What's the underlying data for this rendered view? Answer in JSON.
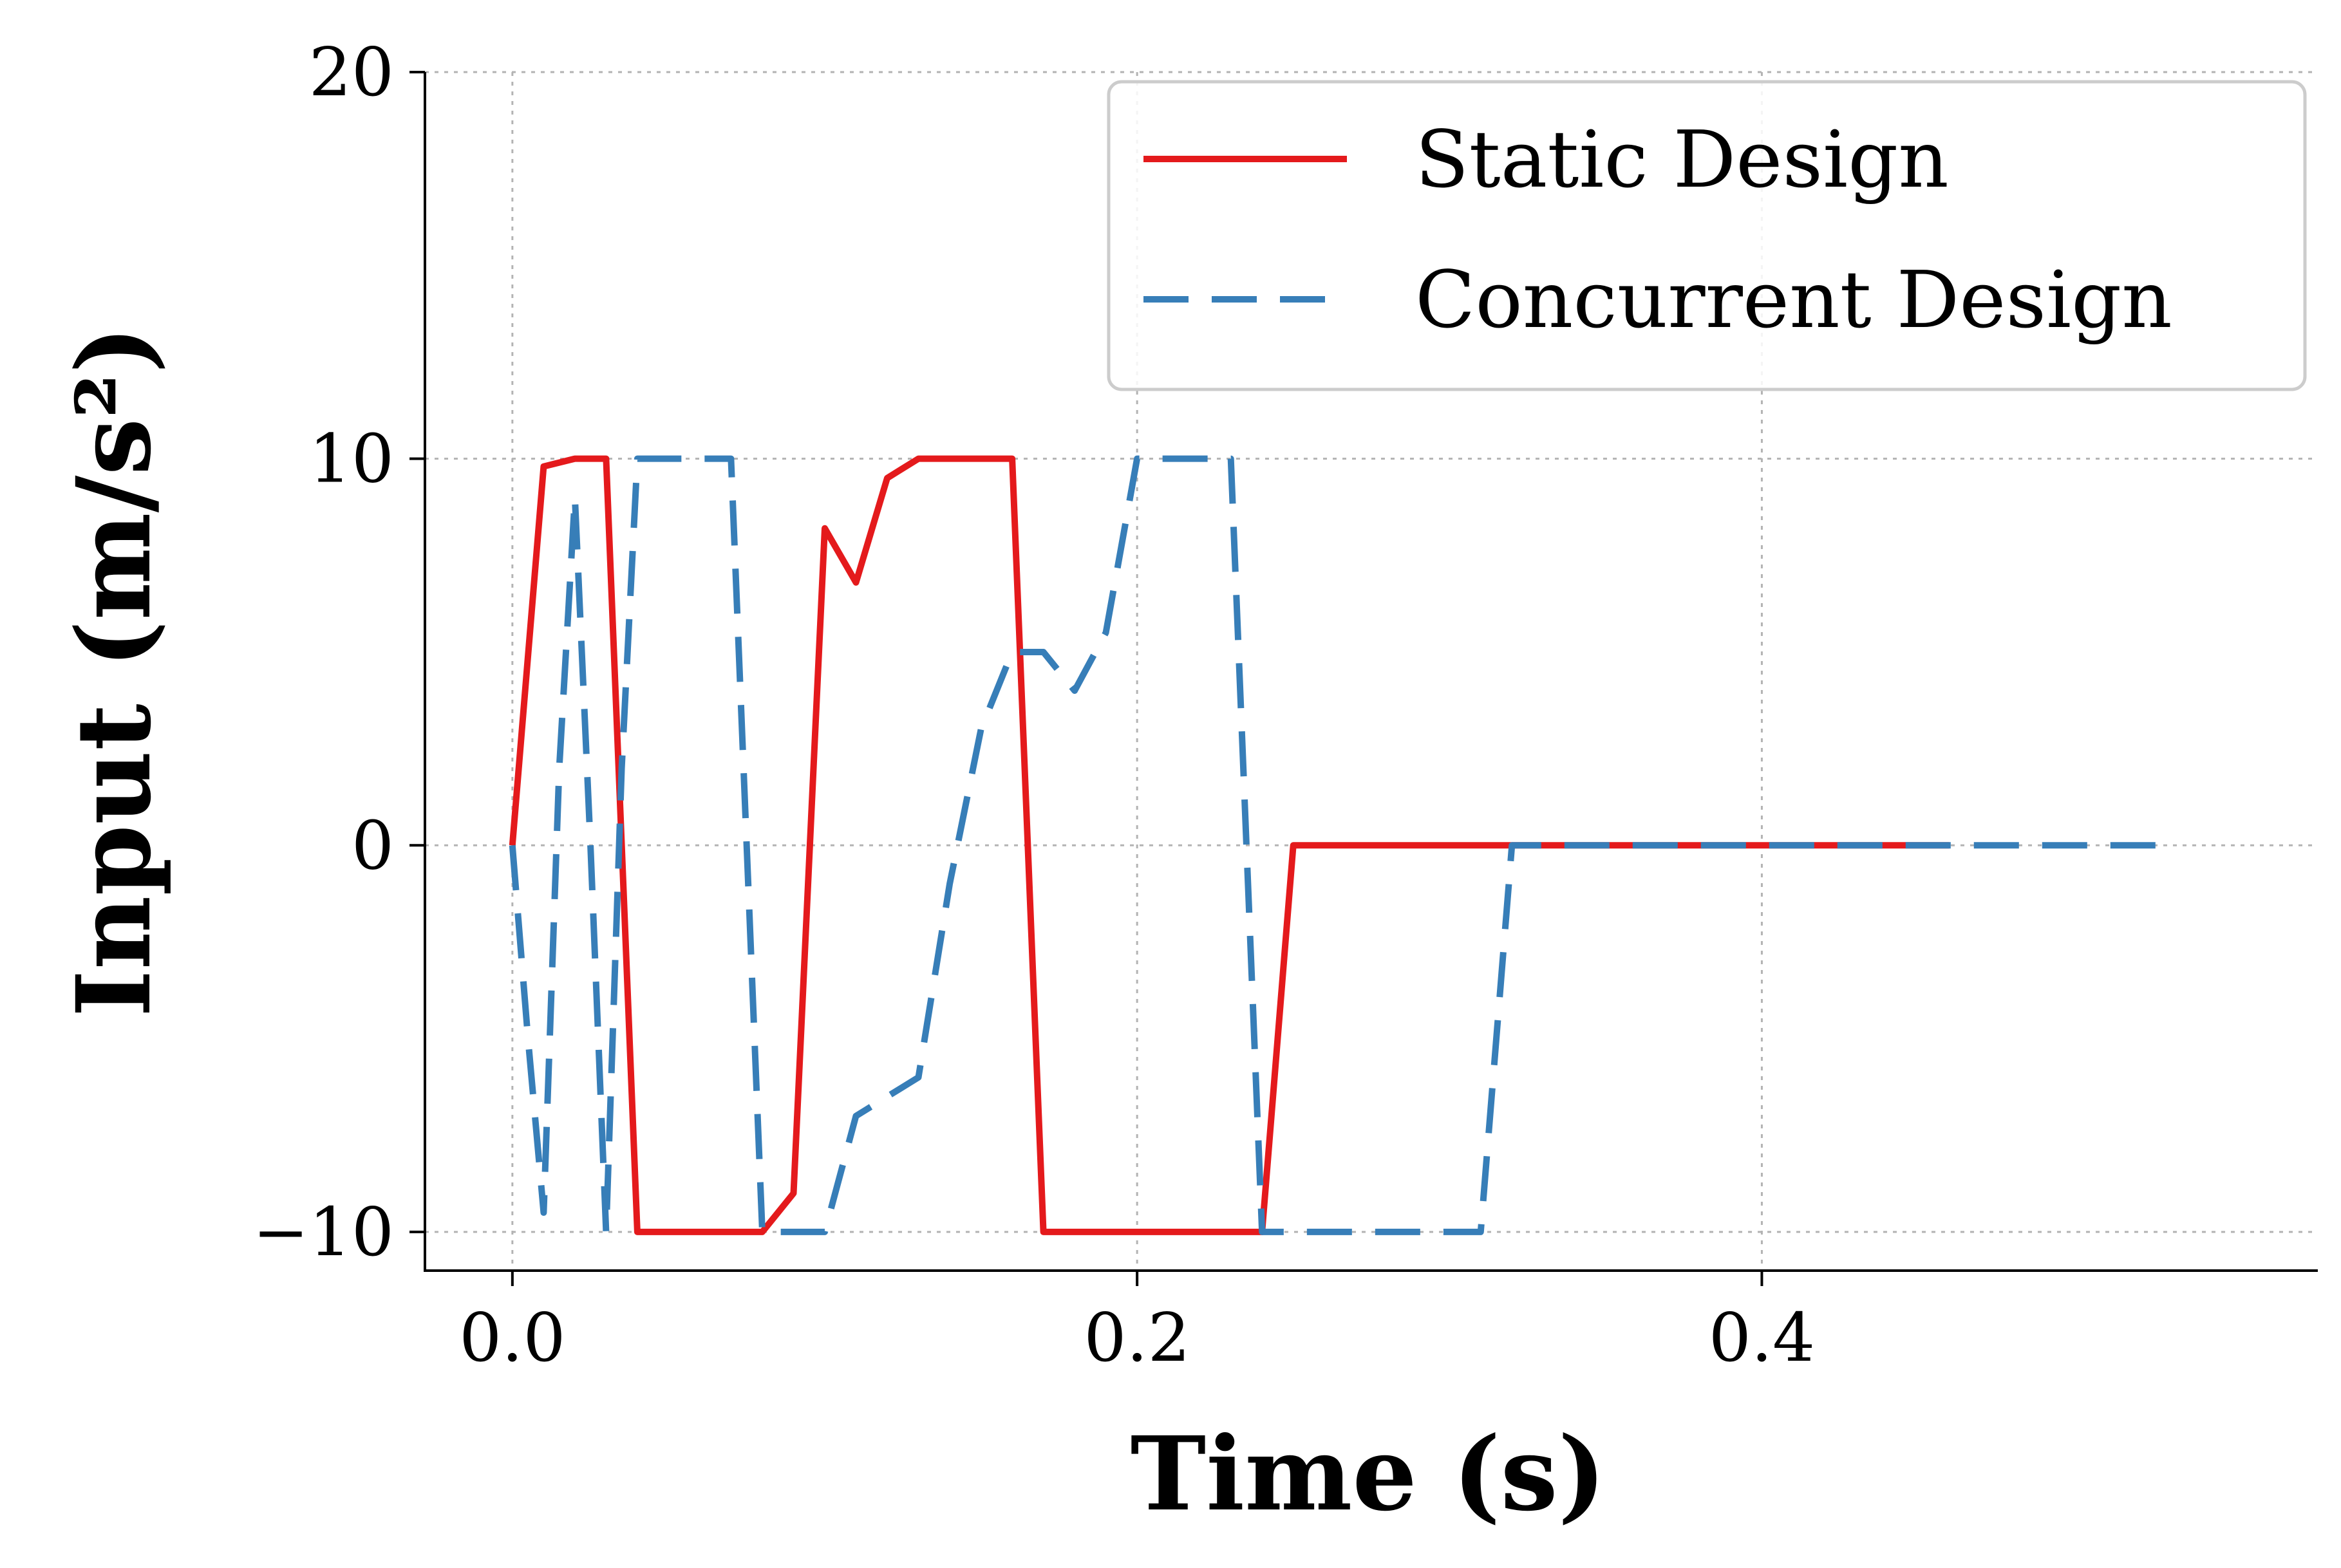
{
  "chart_data": {
    "type": "line",
    "title": "",
    "xlabel": "Time (s)",
    "ylabel": "Input (m/s²)",
    "xlim": [
      -0.028,
      0.578
    ],
    "ylim": [
      -11,
      20
    ],
    "xticks": [
      0.0,
      0.2,
      0.4
    ],
    "xtick_labels": [
      "0.0",
      "0.2",
      "0.4"
    ],
    "yticks": [
      -10,
      0,
      10,
      20
    ],
    "ytick_labels": [
      "−10",
      "0",
      "10",
      "20"
    ],
    "grid": true,
    "legend": {
      "location": "top-right"
    },
    "series": [
      {
        "name": "Static Design",
        "color": "#e41a1c",
        "style": "solid",
        "x": [
          0.0,
          0.01,
          0.02,
          0.03,
          0.04,
          0.05,
          0.06,
          0.07,
          0.08,
          0.09,
          0.1,
          0.11,
          0.12,
          0.13,
          0.14,
          0.15,
          0.16,
          0.17,
          0.18,
          0.19,
          0.2,
          0.21,
          0.22,
          0.23,
          0.24,
          0.25,
          0.26,
          0.27,
          0.28,
          0.29,
          0.3,
          0.31,
          0.32,
          0.33,
          0.34,
          0.35,
          0.36,
          0.37,
          0.38,
          0.39,
          0.4,
          0.41,
          0.42,
          0.43,
          0.44,
          0.45,
          0.46
        ],
        "y": [
          0,
          9.8,
          10,
          10,
          -10,
          -10,
          -10,
          -10,
          -10,
          -9.0,
          8.2,
          6.8,
          9.5,
          10,
          10,
          10,
          10,
          -10,
          -10,
          -10,
          -10,
          -10,
          -10,
          -10,
          -10,
          0,
          0,
          0,
          0,
          0,
          0,
          0,
          0,
          0,
          0,
          0,
          0,
          0,
          0,
          0,
          0,
          0,
          0,
          0,
          0,
          0,
          0
        ]
      },
      {
        "name": "Concurrent Design",
        "color": "#377eb8",
        "style": "dashed",
        "x": [
          0.0,
          0.005,
          0.01,
          0.015,
          0.02,
          0.025,
          0.03,
          0.035,
          0.04,
          0.05,
          0.06,
          0.07,
          0.08,
          0.09,
          0.1,
          0.11,
          0.12,
          0.13,
          0.14,
          0.15,
          0.16,
          0.17,
          0.18,
          0.19,
          0.2,
          0.21,
          0.22,
          0.23,
          0.24,
          0.25,
          0.26,
          0.27,
          0.28,
          0.29,
          0.3,
          0.31,
          0.32,
          0.33,
          0.34,
          0.35,
          0.4,
          0.45,
          0.5,
          0.53
        ],
        "y": [
          0,
          -5,
          -9.5,
          2,
          9,
          0,
          -10,
          2,
          10,
          10,
          10,
          10,
          -10,
          -10,
          -10,
          -7,
          -6.5,
          -6,
          -1,
          3,
          5,
          5,
          4,
          5.5,
          10,
          10,
          10,
          10,
          -10,
          -10,
          -10,
          -10,
          -10,
          -10,
          -10,
          -10,
          0,
          0,
          0,
          0,
          0,
          0,
          0,
          0
        ]
      }
    ]
  }
}
